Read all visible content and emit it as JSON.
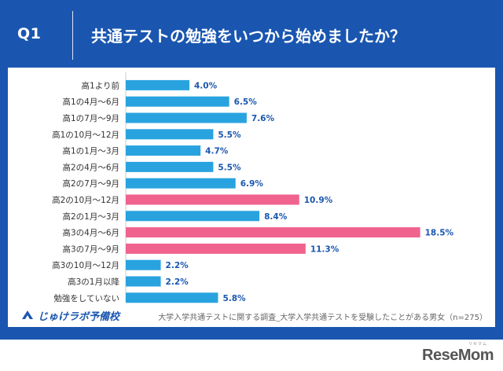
{
  "header": {
    "question": "Q1",
    "title": "共通テストの勉強をいつから始めましたか？"
  },
  "footer": {
    "logo_text": "じゅけラボ予備校",
    "note": "大学入学共通テストに関する調査_大学入学共通テストを受験したことがある男女（n=275）",
    "brand_ruby": "リセマム",
    "brand_name": "ReseMom"
  },
  "colors": {
    "frame": "#1a56b0",
    "bar_default": "#29a3df",
    "bar_highlight": "#f0638e",
    "value_text": "#1a56b0"
  },
  "chart_data": {
    "type": "bar",
    "orientation": "horizontal",
    "unit": "%",
    "xlim": [
      0,
      20
    ],
    "categories": [
      "高1より前",
      "高1の4月～6月",
      "高1の7月～9月",
      "高1の10月～12月",
      "高1の1月～3月",
      "高2の4月～6月",
      "高2の7月～9月",
      "高2の10月～12月",
      "高2の1月～3月",
      "高3の4月～6月",
      "高3の7月～9月",
      "高3の10月～12月",
      "高3の1月以降",
      "勉強をしていない"
    ],
    "values": [
      4.0,
      6.5,
      7.6,
      5.5,
      4.7,
      5.5,
      6.9,
      10.9,
      8.4,
      18.5,
      11.3,
      2.2,
      2.2,
      5.8
    ],
    "value_labels": [
      "4.0%",
      "6.5%",
      "7.6%",
      "5.5%",
      "4.7%",
      "5.5%",
      "6.9%",
      "10.9%",
      "8.4%",
      "18.5%",
      "11.3%",
      "2.2%",
      "2.2%",
      "5.8%"
    ],
    "highlighted": [
      "高2の10月～12月",
      "高3の4月～6月",
      "高3の7月～9月"
    ],
    "grid": false,
    "legend": "none"
  }
}
